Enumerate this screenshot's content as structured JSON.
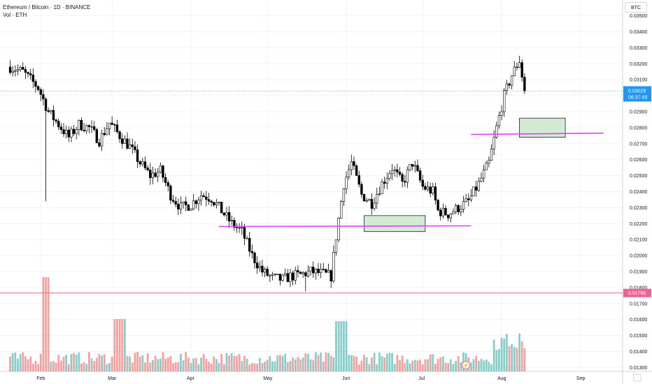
{
  "header": {
    "symbol_line": "Ethereum / Bitcoin · 1D · BINANCE",
    "volume_line": "Vol · ETH"
  },
  "currency_button": "BTC",
  "colors": {
    "up": "#26a69a",
    "down": "#ef5350",
    "candle": "#000000",
    "support_line": "#e040fb",
    "zone_fill": "#c8e6c9",
    "price_badge": "#2196f3",
    "low_line": "#f06292"
  },
  "chart_data": {
    "type": "candlestick",
    "title": "Ethereum / Bitcoin · 1D · BINANCE",
    "x_axis": {
      "type": "date",
      "tick_labels": [
        "Feb",
        "Mar",
        "Apr",
        "May",
        "Jun",
        "Jul",
        "Aug",
        "Sep"
      ]
    },
    "y_axis": {
      "position": "right",
      "ylim": [
        0.0125,
        0.0355
      ],
      "tick_labels": [
        "0.03500",
        "0.03400",
        "0.03300",
        "0.03200",
        "0.03100",
        "0.03000",
        "0.02900",
        "0.02800",
        "0.02700",
        "0.02600",
        "0.02500",
        "0.02400",
        "0.02300",
        "0.02200",
        "0.02100",
        "0.02000",
        "0.01900",
        "0.01800",
        "0.01700",
        "0.01600",
        "0.01500",
        "0.01400",
        "0.01300"
      ]
    },
    "grid": true,
    "ohlc_close_path": [
      [
        "2022-01-20",
        0.0318
      ],
      [
        "2022-01-25",
        0.0315
      ],
      [
        "2022-01-31",
        0.0305
      ],
      [
        "2022-02-04",
        0.029
      ],
      [
        "2022-02-08",
        0.0282
      ],
      [
        "2022-02-12",
        0.0274
      ],
      [
        "2022-02-16",
        0.0282
      ],
      [
        "2022-02-20",
        0.028
      ],
      [
        "2022-02-24",
        0.0272
      ],
      [
        "2022-02-28",
        0.0283
      ],
      [
        "2022-03-04",
        0.0275
      ],
      [
        "2022-03-08",
        0.0268
      ],
      [
        "2022-03-12",
        0.0258
      ],
      [
        "2022-03-16",
        0.025
      ],
      [
        "2022-03-20",
        0.0253
      ],
      [
        "2022-03-24",
        0.0238
      ],
      [
        "2022-03-28",
        0.023
      ],
      [
        "2022-04-01",
        0.0232
      ],
      [
        "2022-04-05",
        0.0238
      ],
      [
        "2022-04-09",
        0.0236
      ],
      [
        "2022-04-13",
        0.0228
      ],
      [
        "2022-04-17",
        0.022
      ],
      [
        "2022-04-21",
        0.0215
      ],
      [
        "2022-04-25",
        0.02
      ],
      [
        "2022-04-29",
        0.019
      ],
      [
        "2022-05-03",
        0.0186
      ],
      [
        "2022-05-07",
        0.0185
      ],
      [
        "2022-05-10",
        0.0187
      ],
      [
        "2022-05-14",
        0.0188
      ],
      [
        "2022-05-18",
        0.019
      ],
      [
        "2022-05-22",
        0.0189
      ],
      [
        "2022-05-26",
        0.0187
      ],
      [
        "2022-05-28",
        0.0212
      ],
      [
        "2022-05-31",
        0.0245
      ],
      [
        "2022-06-03",
        0.0258
      ],
      [
        "2022-06-07",
        0.0238
      ],
      [
        "2022-06-11",
        0.0233
      ],
      [
        "2022-06-15",
        0.0245
      ],
      [
        "2022-06-19",
        0.0255
      ],
      [
        "2022-06-23",
        0.0245
      ],
      [
        "2022-06-27",
        0.0258
      ],
      [
        "2022-07-01",
        0.0243
      ],
      [
        "2022-07-05",
        0.024
      ],
      [
        "2022-07-07",
        0.0228
      ],
      [
        "2022-07-11",
        0.0226
      ],
      [
        "2022-07-15",
        0.023
      ],
      [
        "2022-07-19",
        0.0234
      ],
      [
        "2022-07-23",
        0.0245
      ],
      [
        "2022-07-27",
        0.0258
      ],
      [
        "2022-07-30",
        0.028
      ],
      [
        "2022-08-02",
        0.03
      ],
      [
        "2022-08-05",
        0.0313
      ],
      [
        "2022-08-08",
        0.0322
      ],
      [
        "2022-08-10",
        0.0303
      ]
    ],
    "horizontal_lines": [
      {
        "price": 0.01766,
        "label": "0.01766"
      }
    ],
    "drawn_support_lines": [
      {
        "from": [
          "2022-04-12",
          0.02182
        ],
        "to": [
          "2022-07-20",
          0.02186
        ]
      },
      {
        "from": [
          "2022-07-20",
          0.02758
        ],
        "to": [
          "2022-09-10",
          0.02766
        ]
      }
    ],
    "zones": [
      {
        "from": "2022-06-08",
        "to": "2022-07-02",
        "top": 0.0225,
        "bottom": 0.0215
      },
      {
        "from": "2022-08-08",
        "to": "2022-08-26",
        "top": 0.0286,
        "bottom": 0.0274
      }
    ],
    "last_price": {
      "value": "0.03029",
      "countdown": "06:37:43"
    }
  }
}
